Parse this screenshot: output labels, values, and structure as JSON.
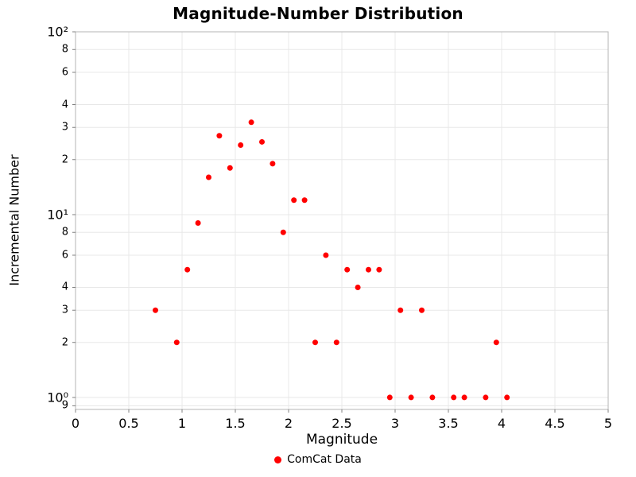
{
  "colors": {
    "point": "#ff0000",
    "grid": "#e8e8e8",
    "border": "#b5b5b5",
    "tick": "#808080",
    "text": "#000000"
  },
  "chart_data": {
    "type": "scatter",
    "title": "Magnitude-Number Distribution",
    "xlabel": "Magnitude",
    "ylabel": "Incremental Number",
    "yscale": "log",
    "grid": true,
    "xlim": [
      0,
      5
    ],
    "ylim": [
      0.86,
      100
    ],
    "legend_position": "bottom-center",
    "x_ticks": [
      {
        "v": 0,
        "label": "0"
      },
      {
        "v": 0.5,
        "label": "0.5"
      },
      {
        "v": 1,
        "label": "1"
      },
      {
        "v": 1.5,
        "label": "1.5"
      },
      {
        "v": 2,
        "label": "2"
      },
      {
        "v": 2.5,
        "label": "2.5"
      },
      {
        "v": 3,
        "label": "3"
      },
      {
        "v": 3.5,
        "label": "3.5"
      },
      {
        "v": 4,
        "label": "4"
      },
      {
        "v": 4.5,
        "label": "4.5"
      },
      {
        "v": 5,
        "label": "5"
      }
    ],
    "y_ticks": [
      {
        "v": 100,
        "label": "10²",
        "major": true
      },
      {
        "v": 80,
        "label": "8"
      },
      {
        "v": 60,
        "label": "6"
      },
      {
        "v": 40,
        "label": "4"
      },
      {
        "v": 30,
        "label": "3"
      },
      {
        "v": 20,
        "label": "2"
      },
      {
        "v": 10,
        "label": "10¹",
        "major": true
      },
      {
        "v": 8,
        "label": "8"
      },
      {
        "v": 6,
        "label": "6"
      },
      {
        "v": 4,
        "label": "4"
      },
      {
        "v": 3,
        "label": "3"
      },
      {
        "v": 2,
        "label": "2"
      },
      {
        "v": 1,
        "label": "10⁰",
        "major": true
      },
      {
        "v": 0.9,
        "label": "9"
      }
    ],
    "legend": [
      {
        "label": "ComCat Data",
        "color": "#ff0000",
        "marker": "dot"
      }
    ],
    "series": [
      {
        "name": "ComCat Data",
        "color": "#ff0000",
        "points": [
          {
            "x": 0.75,
            "y": 3
          },
          {
            "x": 0.95,
            "y": 2
          },
          {
            "x": 1.05,
            "y": 5
          },
          {
            "x": 1.15,
            "y": 9
          },
          {
            "x": 1.25,
            "y": 16
          },
          {
            "x": 1.35,
            "y": 27
          },
          {
            "x": 1.45,
            "y": 18
          },
          {
            "x": 1.55,
            "y": 24
          },
          {
            "x": 1.65,
            "y": 32
          },
          {
            "x": 1.75,
            "y": 25
          },
          {
            "x": 1.85,
            "y": 19
          },
          {
            "x": 1.95,
            "y": 8
          },
          {
            "x": 2.05,
            "y": 12
          },
          {
            "x": 2.15,
            "y": 12
          },
          {
            "x": 2.25,
            "y": 2
          },
          {
            "x": 2.35,
            "y": 6
          },
          {
            "x": 2.45,
            "y": 2
          },
          {
            "x": 2.55,
            "y": 5
          },
          {
            "x": 2.65,
            "y": 4
          },
          {
            "x": 2.75,
            "y": 5
          },
          {
            "x": 2.85,
            "y": 5
          },
          {
            "x": 2.95,
            "y": 1
          },
          {
            "x": 3.05,
            "y": 3
          },
          {
            "x": 3.15,
            "y": 1
          },
          {
            "x": 3.25,
            "y": 3
          },
          {
            "x": 3.35,
            "y": 1
          },
          {
            "x": 3.55,
            "y": 1
          },
          {
            "x": 3.65,
            "y": 1
          },
          {
            "x": 3.85,
            "y": 1
          },
          {
            "x": 3.95,
            "y": 2
          },
          {
            "x": 4.05,
            "y": 1
          }
        ]
      }
    ]
  }
}
